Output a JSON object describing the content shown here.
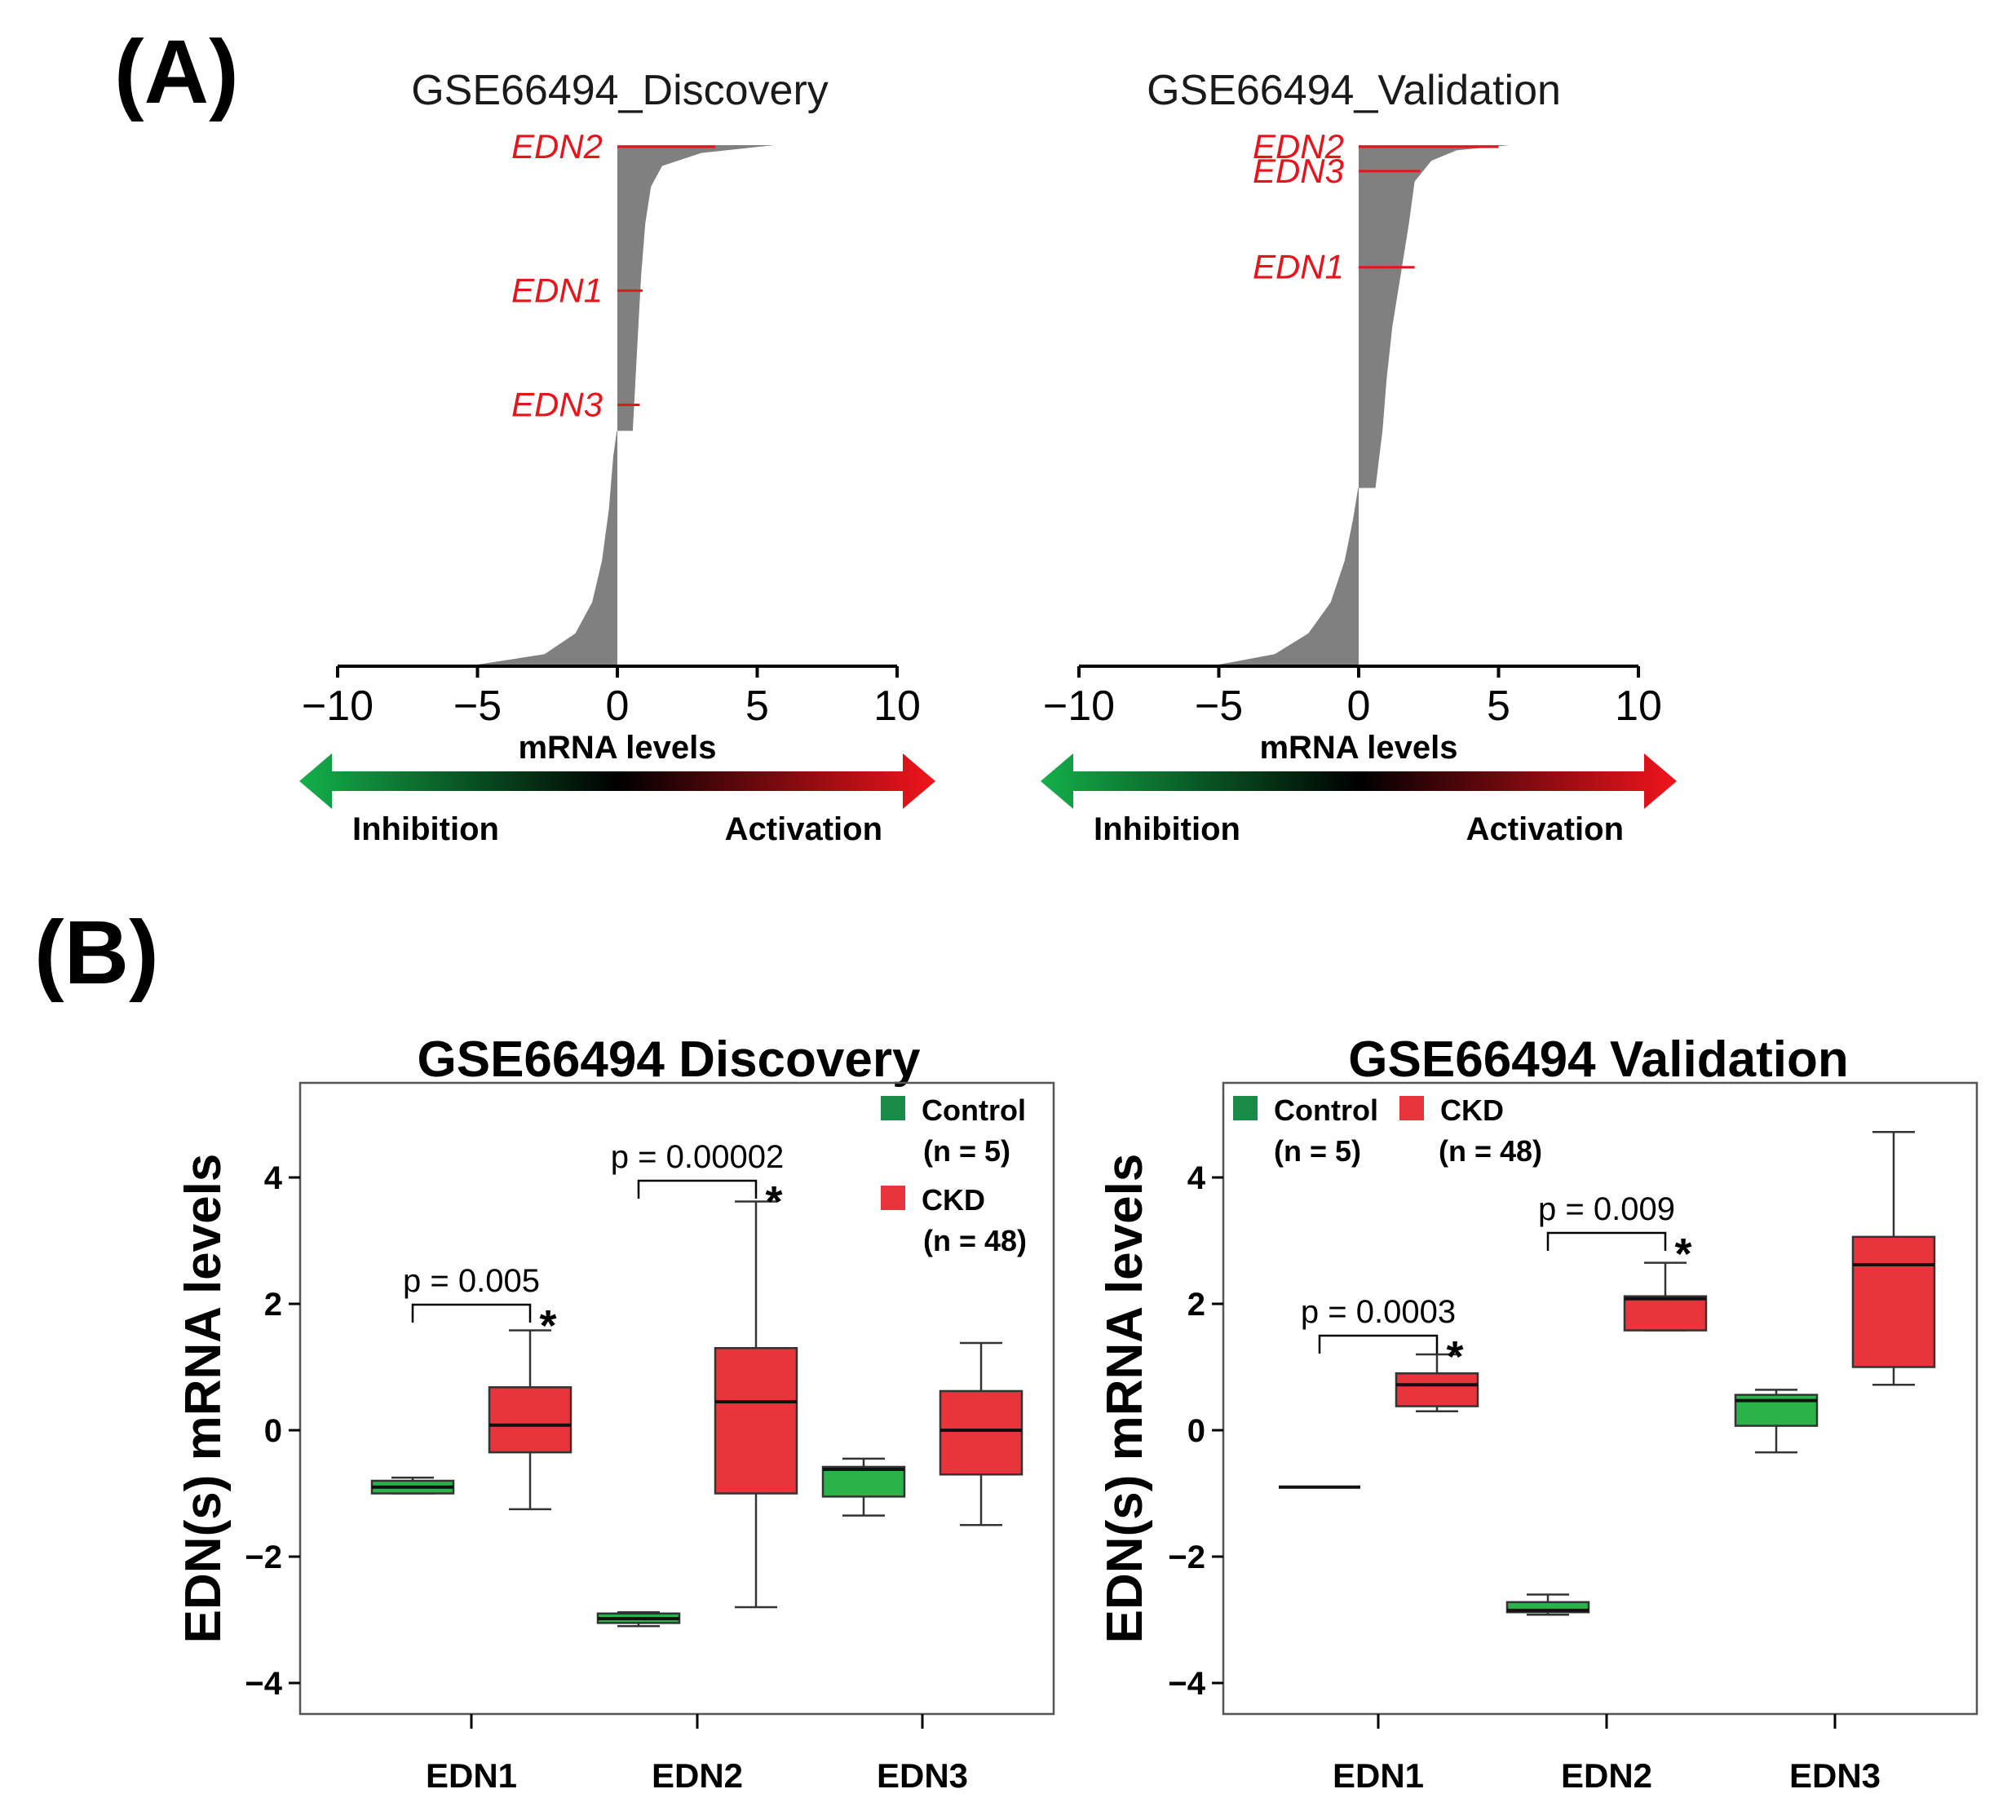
{
  "colors": {
    "control": "#2bb34a",
    "ckd": "#e8343a",
    "waterfall": "#808080",
    "gene": "#e8141c",
    "legend_control": "#1a8c48",
    "legend_ckd": "#e8343a"
  },
  "panelA": {
    "letter": "(A)",
    "xlabel": "mRNA levels",
    "inhibition": "Inhibition",
    "activation": "Activation",
    "xticks": [
      "−10",
      "−5",
      "0",
      "5",
      "10"
    ],
    "chart_data": [
      {
        "type": "area",
        "title": "GSE66494_Discovery",
        "xlim": [
          -10,
          10
        ],
        "genes": [
          {
            "name": "EDN2",
            "rank": 0.0,
            "value": 3.5
          },
          {
            "name": "EDN1",
            "rank": 0.28,
            "value": 0.9
          },
          {
            "name": "EDN3",
            "rank": 0.5,
            "value": 0.8
          }
        ],
        "profile": [
          [
            0.0,
            5.6
          ],
          [
            0.015,
            3.0
          ],
          [
            0.04,
            1.6
          ],
          [
            0.08,
            1.2
          ],
          [
            0.15,
            1.0
          ],
          [
            0.25,
            0.85
          ],
          [
            0.35,
            0.75
          ],
          [
            0.45,
            0.65
          ],
          [
            0.55,
            0.55
          ],
          [
            0.5501,
            -0.02
          ],
          [
            0.6,
            -0.15
          ],
          [
            0.7,
            -0.3
          ],
          [
            0.8,
            -0.55
          ],
          [
            0.88,
            -0.9
          ],
          [
            0.94,
            -1.5
          ],
          [
            0.98,
            -2.6
          ],
          [
            1.0,
            -5.0
          ]
        ]
      },
      {
        "type": "area",
        "title": "GSE66494_Validation",
        "xlim": [
          -10,
          10
        ],
        "genes": [
          {
            "name": "EDN2",
            "rank": 0.0,
            "value": 5.0
          },
          {
            "name": "EDN3",
            "rank": 0.05,
            "value": 2.2
          },
          {
            "name": "EDN1",
            "rank": 0.235,
            "value": 2.0
          }
        ],
        "profile": [
          [
            0.0,
            5.4
          ],
          [
            0.01,
            3.5
          ],
          [
            0.03,
            2.6
          ],
          [
            0.07,
            2.0
          ],
          [
            0.15,
            1.8
          ],
          [
            0.25,
            1.5
          ],
          [
            0.35,
            1.2
          ],
          [
            0.45,
            1.0
          ],
          [
            0.55,
            0.85
          ],
          [
            0.66,
            0.6
          ],
          [
            0.6601,
            -0.02
          ],
          [
            0.72,
            -0.2
          ],
          [
            0.8,
            -0.5
          ],
          [
            0.88,
            -1.0
          ],
          [
            0.94,
            -1.8
          ],
          [
            0.98,
            -3.0
          ],
          [
            1.0,
            -5.0
          ]
        ]
      }
    ]
  },
  "panelB": {
    "letter": "(B)",
    "ylabel": "EDN(s) mRNA levels",
    "yticks": [
      "4",
      "2",
      "0",
      "−2",
      "−4"
    ],
    "legend": {
      "control": "Control",
      "control_n": "(n = 5)",
      "ckd": "CKD",
      "ckd_n": "(n = 48)"
    },
    "chart_data": [
      {
        "type": "box",
        "title": "GSE66494 Discovery",
        "ylim": [
          -4.5,
          5.5
        ],
        "categories": [
          "EDN1",
          "EDN2",
          "EDN3"
        ],
        "series": [
          {
            "name": "Control",
            "n": 5,
            "boxes": [
              {
                "min": -1.0,
                "q1": -1.0,
                "median": -0.9,
                "q3": -0.8,
                "max": -0.75
              },
              {
                "min": -3.1,
                "q1": -3.05,
                "median": -2.98,
                "q3": -2.9,
                "max": -2.88
              },
              {
                "min": -1.35,
                "q1": -1.05,
                "median": -0.62,
                "q3": -0.58,
                "max": -0.45
              }
            ]
          },
          {
            "name": "CKD",
            "n": 48,
            "boxes": [
              {
                "min": -1.25,
                "q1": -0.35,
                "median": 0.08,
                "q3": 0.68,
                "max": 1.58
              },
              {
                "min": -2.8,
                "q1": -1.0,
                "median": 0.45,
                "q3": 1.3,
                "max": 3.62
              },
              {
                "min": -1.5,
                "q1": -0.7,
                "median": 0.0,
                "q3": 0.62,
                "max": 1.38
              }
            ]
          }
        ],
        "comparisons": [
          {
            "category": "EDN1",
            "p": "p = 0.005",
            "star": "*"
          },
          {
            "category": "EDN2",
            "p": "p = 0.00002",
            "star": "*"
          }
        ]
      },
      {
        "type": "box",
        "title": "GSE66494 Validation",
        "ylim": [
          -4.5,
          5.5
        ],
        "categories": [
          "EDN1",
          "EDN2",
          "EDN3"
        ],
        "series": [
          {
            "name": "Control",
            "n": 5,
            "boxes": [
              {
                "min": -0.9,
                "q1": -0.9,
                "median": -0.9,
                "q3": -0.9,
                "max": -0.9
              },
              {
                "min": -2.92,
                "q1": -2.88,
                "median": -2.85,
                "q3": -2.72,
                "max": -2.6
              },
              {
                "min": -0.35,
                "q1": 0.07,
                "median": 0.47,
                "q3": 0.56,
                "max": 0.64
              }
            ]
          },
          {
            "name": "CKD",
            "n": 48,
            "boxes": [
              {
                "min": 0.3,
                "q1": 0.38,
                "median": 0.72,
                "q3": 0.9,
                "max": 1.2
              },
              {
                "min": 1.58,
                "q1": 1.58,
                "median": 2.08,
                "q3": 2.12,
                "max": 2.65
              },
              {
                "min": 0.72,
                "q1": 1.0,
                "median": 2.62,
                "q3": 3.06,
                "max": 4.72
              }
            ]
          }
        ],
        "comparisons": [
          {
            "category": "EDN1",
            "p": "p = 0.0003",
            "star": "*"
          },
          {
            "category": "EDN2",
            "p": "p = 0.009",
            "star": "*"
          }
        ]
      }
    ]
  }
}
